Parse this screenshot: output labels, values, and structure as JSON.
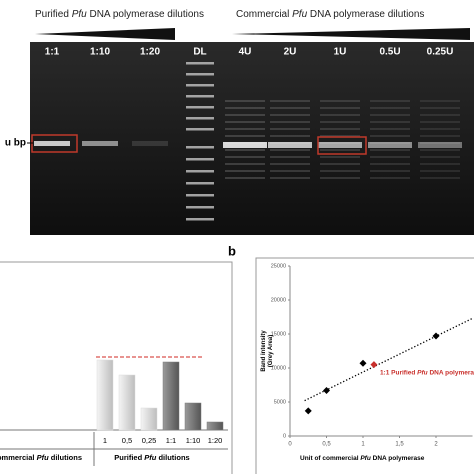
{
  "gel": {
    "title_left": [
      "Purified ",
      "Pfu",
      " DNA polymerase dilutions"
    ],
    "title_right": [
      "Commercial ",
      "Pfu",
      " DNA polymerase dilutions"
    ],
    "lanes": [
      "1:1",
      "1:10",
      "1:20",
      "DL",
      "4U",
      "2U",
      "1U",
      "0.5U",
      "0.25U"
    ],
    "marker": "u bp"
  },
  "panel_label": "b",
  "chart_data": [
    {
      "type": "bar",
      "categories": [
        "1",
        "0,5",
        "0,25",
        "1:1",
        "1:10",
        "1:20"
      ],
      "values": [
        70,
        55,
        22,
        68,
        27,
        8
      ],
      "colors": [
        "#dcdcdc",
        "#dcdcdc",
        "#dcdcdc",
        "#7d7d7d",
        "#7d7d7d",
        "#7d7d7d"
      ],
      "ylim": [
        0,
        150
      ],
      "reference_line": {
        "value": 73,
        "color": "#d9534f"
      },
      "groups": [
        [
          "Commercial ",
          "Pfu",
          " dilutions"
        ],
        [
          "Purified ",
          "Pfu",
          " dilutions"
        ]
      ]
    },
    {
      "type": "scatter",
      "ylabel": [
        "Band intensity",
        "(Grey Area)"
      ],
      "xlabel": [
        "Unit of commercial ",
        "Pfu",
        " DNA polymerase"
      ],
      "xlim": [
        0,
        2.5
      ],
      "ylim": [
        0,
        25000
      ],
      "xticks": [
        0,
        {
          "value": 0.5,
          "label": "0,5"
        },
        1,
        {
          "value": 1.5,
          "label": "1,5"
        },
        2
      ],
      "yticks": [
        0,
        5000,
        10000,
        15000,
        20000,
        25000
      ],
      "series": [
        {
          "color": "#000000",
          "x": [
            0.25,
            0.5,
            1,
            2
          ],
          "values": [
            3700,
            6700,
            10700,
            14700
          ]
        },
        {
          "color": "#c9302c",
          "x": [
            1.15
          ],
          "values": [
            10500
          ]
        }
      ],
      "point_label": [
        "1:1 Purified ",
        "Pfu",
        " DNA polymerase"
      ],
      "trendline": {
        "x": [
          0.2,
          2.5
        ],
        "values": [
          5200,
          17300
        ]
      }
    }
  ]
}
